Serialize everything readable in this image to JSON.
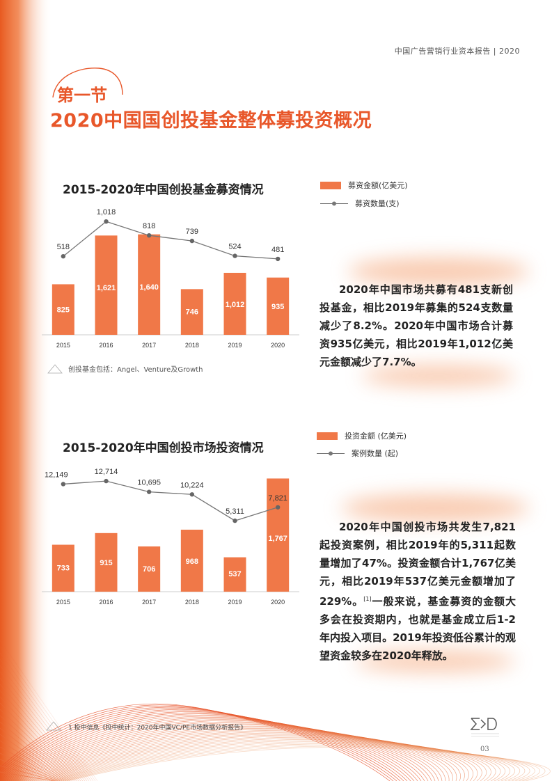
{
  "header": {
    "title": "中国广告营销行业资本报告 | 2020"
  },
  "section": {
    "label": "第一节",
    "title": "2020中国国创投基金整体募投资概况"
  },
  "chart1": {
    "title": "2015-2020年中国创投基金募资情况",
    "legend_bar": "募资金额(亿美元)",
    "legend_line": "募资数量(支)",
    "note": "创投基金包括：Angel、Venture及Growth",
    "accent": "#f07848",
    "line_color": "#777777"
  },
  "chart2": {
    "title": "2015-2020年中国创投市场投资情况",
    "legend_bar": "投资金额 (亿美元)",
    "legend_line": "案例数量 (起)"
  },
  "chart_data": [
    {
      "type": "bar",
      "title": "2015-2020年中国创投基金募资情况",
      "categories": [
        "2015",
        "2016",
        "2017",
        "2018",
        "2019",
        "2020"
      ],
      "series": [
        {
          "name": "募资金额(亿美元)",
          "type": "bar",
          "values": [
            825,
            1621,
            1640,
            746,
            1012,
            935
          ],
          "labels": [
            "825",
            "1,621",
            "1,640",
            "746",
            "1,012",
            "935"
          ]
        },
        {
          "name": "募资数量(支)",
          "type": "line",
          "values": [
            518,
            1018,
            818,
            739,
            524,
            481
          ],
          "labels": [
            "518",
            "1,018",
            "818",
            "739",
            "524",
            "481"
          ]
        }
      ]
    },
    {
      "type": "bar",
      "title": "2015-2020年中国创投市场投资情况",
      "categories": [
        "2015",
        "2016",
        "2017",
        "2018",
        "2019",
        "2020"
      ],
      "series": [
        {
          "name": "投资金额 (亿美元)",
          "type": "bar",
          "values": [
            733,
            915,
            706,
            968,
            537,
            1767
          ],
          "labels": [
            "733",
            "915",
            "706",
            "968",
            "537",
            "1,767"
          ]
        },
        {
          "name": "案例数量 (起)",
          "type": "line",
          "values": [
            12149,
            12714,
            10695,
            10224,
            5311,
            7821
          ],
          "labels": [
            "12,149",
            "12,714",
            "10,695",
            "10,224",
            "5,311",
            "7,821"
          ]
        }
      ]
    }
  ],
  "paragraph1": "2020年中国市场共募有481支新创投基金，相比2019年募集的524支数量减少了8.2%。2020年中国市场合计募资935亿美元，相比2019年1,012亿美元金额减少了7.7%。",
  "paragraph2": {
    "text_a": "2020年中国创投市场共发生7,821起投资案例，相比2019年的5,311起数量增加了47%。投资金额合计1,767亿美元，相比2019年537亿美元金额增加了229%。",
    "sup": "[1]",
    "text_b": "一般来说，基金募资的金额大多会在投资期内，也就是基金成立后1-2年内投入项目。2019年投资低谷累计的观望资金较多在2020年释放。"
  },
  "footnote": "1 投中信息《投中统计：2020年中国VC/PE市场数据分析报告》",
  "page_number": "03"
}
